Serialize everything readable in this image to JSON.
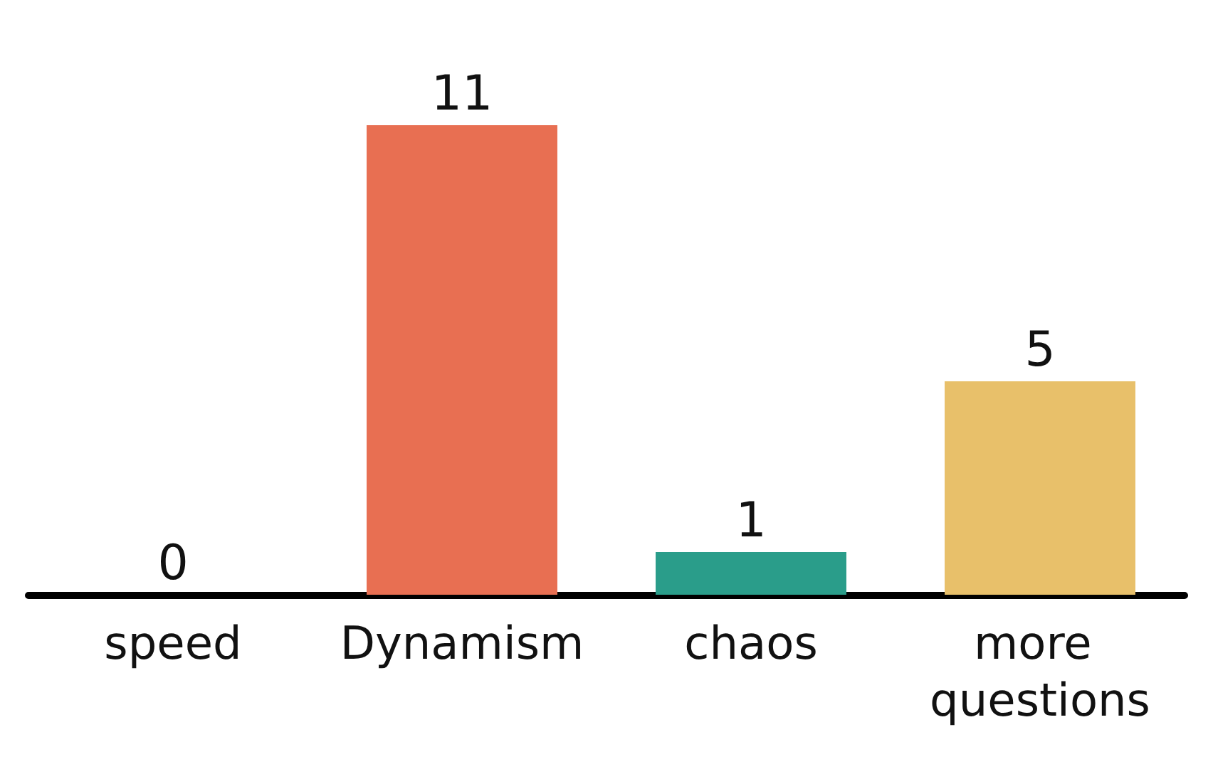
{
  "chart_data": {
    "type": "bar",
    "categories": [
      "speed",
      "Dynamism",
      "chaos",
      "more questions"
    ],
    "values": [
      0,
      11,
      1,
      5
    ],
    "colors": [
      "#e86f52",
      "#e86f52",
      "#2a9d8a",
      "#e8c06a"
    ],
    "data_labels": true
  }
}
